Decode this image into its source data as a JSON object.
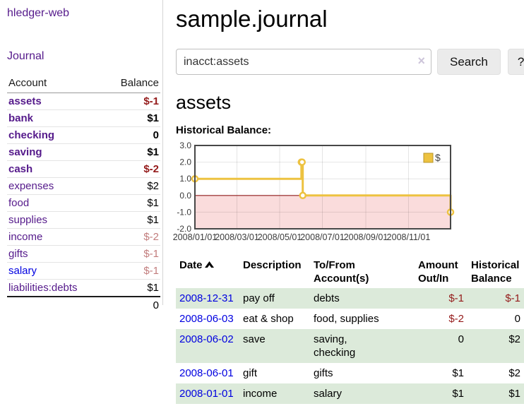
{
  "app": {
    "title": "hledger-web"
  },
  "colors": {
    "link_visited_purple": "#551a8b",
    "link_blue": "#0000e0",
    "negative_dark": "#941a1a",
    "negative_light": "#c27d7d",
    "row_green": "#dceada",
    "chart_line": "#edc240",
    "chart_negative_fill": "#fadcdc",
    "chart_zero_line": "#8f1d1d"
  },
  "sidebar": {
    "journal_link": "Journal",
    "table": {
      "header_account": "Account",
      "header_balance": "Balance",
      "rows": [
        {
          "account": "assets",
          "balance": "$-1",
          "indent": 1,
          "bold": true,
          "neg": "dark"
        },
        {
          "account": "bank",
          "balance": "$1",
          "indent": 2,
          "bold": true,
          "neg": null
        },
        {
          "account": "checking",
          "balance": "0",
          "indent": 3,
          "bold": true,
          "neg": null
        },
        {
          "account": "saving",
          "balance": "$1",
          "indent": 3,
          "bold": true,
          "neg": null
        },
        {
          "account": "cash",
          "balance": "$-2",
          "indent": 2,
          "bold": true,
          "neg": "dark"
        },
        {
          "account": "expenses",
          "balance": "$2",
          "indent": 1,
          "bold": false,
          "neg": null
        },
        {
          "account": "food",
          "balance": "$1",
          "indent": 2,
          "bold": false,
          "neg": null
        },
        {
          "account": "supplies",
          "balance": "$1",
          "indent": 2,
          "bold": false,
          "neg": null
        },
        {
          "account": "income",
          "balance": "$-2",
          "indent": 1,
          "bold": false,
          "neg": "light"
        },
        {
          "account": "gifts",
          "balance": "$-1",
          "indent": 2,
          "bold": false,
          "neg": "light"
        },
        {
          "account": "salary",
          "balance": "$-1",
          "indent": 2,
          "bold": false,
          "neg": "light",
          "link": "blue"
        },
        {
          "account": "liabilities:debts",
          "balance": "$1",
          "indent": 1,
          "bold": false,
          "neg": null
        }
      ],
      "total": "0"
    }
  },
  "main": {
    "title": "sample.journal",
    "search": {
      "value": "inacct:assets",
      "clear_icon": "×",
      "button_label": "Search",
      "help_label": "?"
    },
    "account_heading": "assets",
    "chart_heading": "Historical Balance:"
  },
  "chart_data": {
    "type": "line",
    "step": true,
    "title": "Historical Balance",
    "x_range": [
      "2008-01-01",
      "2008-12-31"
    ],
    "ylim": [
      -2,
      3
    ],
    "yticks": [
      {
        "v": 3,
        "label": "3.0"
      },
      {
        "v": 2,
        "label": "2.0"
      },
      {
        "v": 1,
        "label": "1.0"
      },
      {
        "v": 0,
        "label": "0.0"
      },
      {
        "v": -1,
        "label": "-1.0"
      },
      {
        "v": -2,
        "label": "-2.0"
      }
    ],
    "ygrid": [
      2,
      1,
      -1
    ],
    "xticks": [
      "2008/01/01",
      "2008/03/01",
      "2008/05/01",
      "2008/07/01",
      "2008/09/01",
      "2008/11/01"
    ],
    "series": [
      {
        "name": "$",
        "color": "#edc240",
        "points": [
          [
            "2008-01-01",
            1
          ],
          [
            "2008-06-01",
            2
          ],
          [
            "2008-06-02",
            2
          ],
          [
            "2008-06-03",
            0
          ],
          [
            "2008-12-31",
            -1
          ]
        ]
      }
    ],
    "negative_fill": "#fadcdc",
    "zero_line_color": "#8f1d1d",
    "legend_position": "top-right"
  },
  "register": {
    "header_date": "Date",
    "header_description": "Description",
    "header_accounts": "To/From\nAccount(s)",
    "header_amount": "Amount\nOut/In",
    "header_balance": "Historical\nBalance",
    "rows": [
      {
        "date": "2008-12-31",
        "description": "pay off",
        "accounts": "debts",
        "amount": "$-1",
        "balance": "$-1",
        "amount_neg": true,
        "balance_neg": true,
        "shaded": true
      },
      {
        "date": "2008-06-03",
        "description": "eat & shop",
        "accounts": "food, supplies",
        "amount": "$-2",
        "balance": "0",
        "amount_neg": true,
        "balance_neg": false,
        "shaded": false
      },
      {
        "date": "2008-06-02",
        "description": "save",
        "accounts": "saving,\nchecking",
        "amount": "0",
        "balance": "$2",
        "amount_neg": false,
        "balance_neg": false,
        "shaded": true
      },
      {
        "date": "2008-06-01",
        "description": "gift",
        "accounts": "gifts",
        "amount": "$1",
        "balance": "$2",
        "amount_neg": false,
        "balance_neg": false,
        "shaded": false
      },
      {
        "date": "2008-01-01",
        "description": "income",
        "accounts": "salary",
        "amount": "$1",
        "balance": "$1",
        "amount_neg": false,
        "balance_neg": false,
        "shaded": true
      }
    ]
  }
}
